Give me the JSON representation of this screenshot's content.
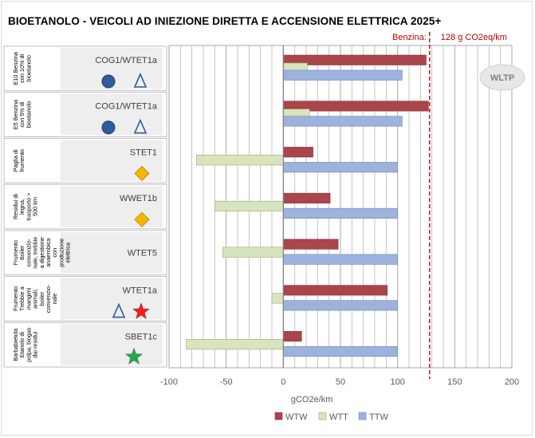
{
  "title": "BIOETANOLO - VEICOLI AD INIEZIONE DIRETTA E ACCENSIONE ELETTRICA    2025+",
  "reference": {
    "label": "Benzina:",
    "value_text": "128 g CO2eq/km",
    "value": 128,
    "color": "#c00000"
  },
  "badge": "WLTP",
  "colors": {
    "WTW": "#a9454b",
    "WTT": "#d7e4bd",
    "TTW": "#9db3de",
    "circle": "#2e5c9e",
    "diamond": "#f5b800",
    "star_red": "#ff1a1a",
    "star_green": "#22aa44",
    "triangle": "#2e5c9e"
  },
  "chart_data": {
    "type": "bar",
    "orientation": "horizontal",
    "xlabel": "gCO2e/km",
    "xlim": [
      -100,
      200
    ],
    "xticks": [
      -100,
      -50,
      0,
      50,
      100,
      150,
      200
    ],
    "grid": "vertical minor lines every 10",
    "legend_position": "bottom",
    "categories": [
      {
        "label": "E10 Benzina con 10% di bioetanolo",
        "code": "COG1/WTET1a",
        "symbols": [
          "circle",
          "triangle"
        ]
      },
      {
        "label": "E5 Benzina con 5% di bioetanolo",
        "code": "COG1/WTET1a",
        "symbols": [
          "circle",
          "triangle"
        ]
      },
      {
        "label": "Paglia di frumento",
        "code": "STET1",
        "symbols": [
          "diamond"
        ]
      },
      {
        "label": "Residui di legna, trasporto > 500 km",
        "code": "WWET1b",
        "symbols": [
          "diamond"
        ]
      },
      {
        "label": "Frumento Boiler convenzio- nale, trebbie a digestione anaerobica con produzione elettrica",
        "code": "WTET5",
        "symbols": []
      },
      {
        "label": "Frumento Trebbie a mangimi animali, boiler convenzio- nale",
        "code": "WTET1a",
        "symbols": [
          "triangle",
          "star_red"
        ]
      },
      {
        "label": "Barbabietola Etanolo di polpa, biogas dai residui",
        "code": "SBET1c",
        "symbols": [
          "star_green"
        ]
      }
    ],
    "series": [
      {
        "name": "WTW",
        "values": [
          125,
          127,
          26,
          41,
          48,
          91,
          16
        ]
      },
      {
        "name": "WTT",
        "values": [
          21,
          23,
          -76,
          -60,
          -53,
          -10,
          -85
        ]
      },
      {
        "name": "TTW",
        "values": [
          104,
          104,
          100,
          100,
          100,
          100,
          100
        ]
      }
    ]
  }
}
